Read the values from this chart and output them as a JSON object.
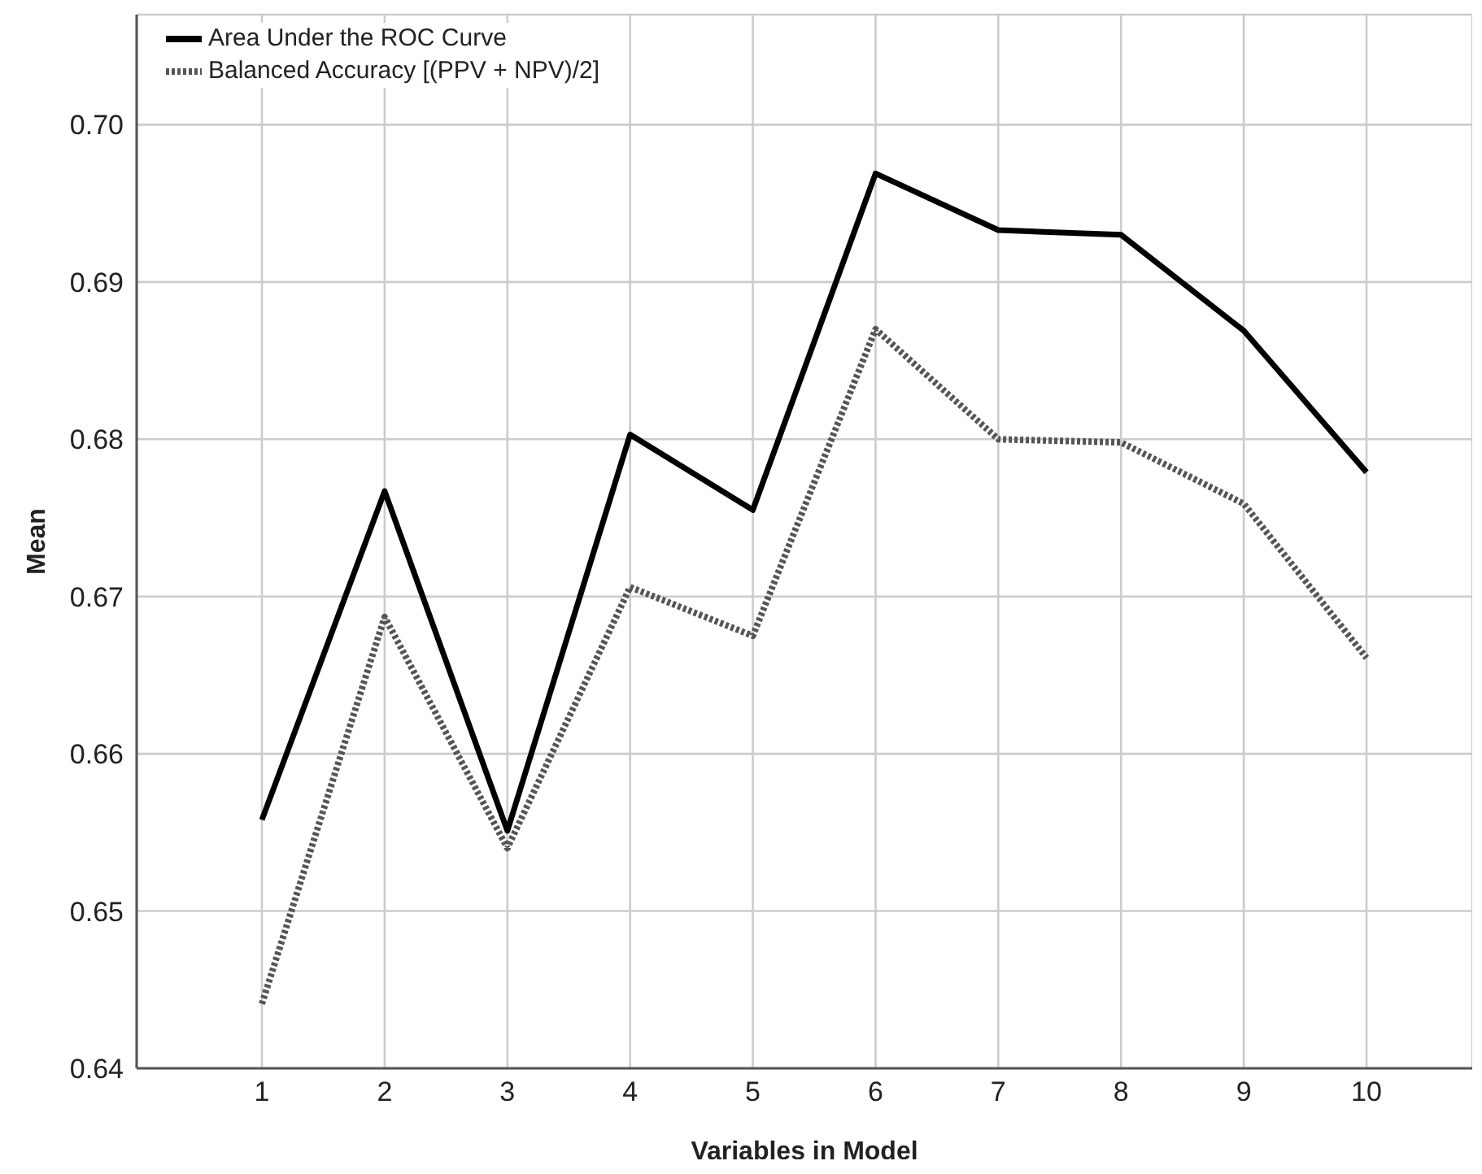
{
  "chart_data": {
    "type": "line",
    "xlabel": "Variables in Model",
    "ylabel": "Mean",
    "categories": [
      "1",
      "2",
      "3",
      "4",
      "5",
      "6",
      "7",
      "8",
      "9",
      "10"
    ],
    "series": [
      {
        "name": "Area Under the ROC Curve",
        "color": "#000000",
        "line_style": "solid",
        "values": [
          0.6558,
          0.6767,
          0.6551,
          0.6803,
          0.6755,
          0.6969,
          0.6933,
          0.693,
          0.6869,
          0.6779
        ]
      },
      {
        "name": "Balanced Accuracy [(PPV + NPV)/2]",
        "color": "#555555",
        "line_style": "dotted",
        "values": [
          0.6441,
          0.6687,
          0.654,
          0.6706,
          0.6675,
          0.687,
          0.68,
          0.6798,
          0.6759,
          0.6661
        ]
      }
    ],
    "ylim": [
      0.64,
      0.707
    ],
    "yticks": [
      {
        "value": 0.64,
        "label": "0.64"
      },
      {
        "value": 0.65,
        "label": "0.65"
      },
      {
        "value": 0.66,
        "label": "0.66"
      },
      {
        "value": 0.67,
        "label": "0.67"
      },
      {
        "value": 0.68,
        "label": "0.68"
      },
      {
        "value": 0.69,
        "label": "0.69"
      },
      {
        "value": 0.7,
        "label": "0.70"
      }
    ],
    "grid": true,
    "legend": "top left",
    "marker": "none"
  }
}
